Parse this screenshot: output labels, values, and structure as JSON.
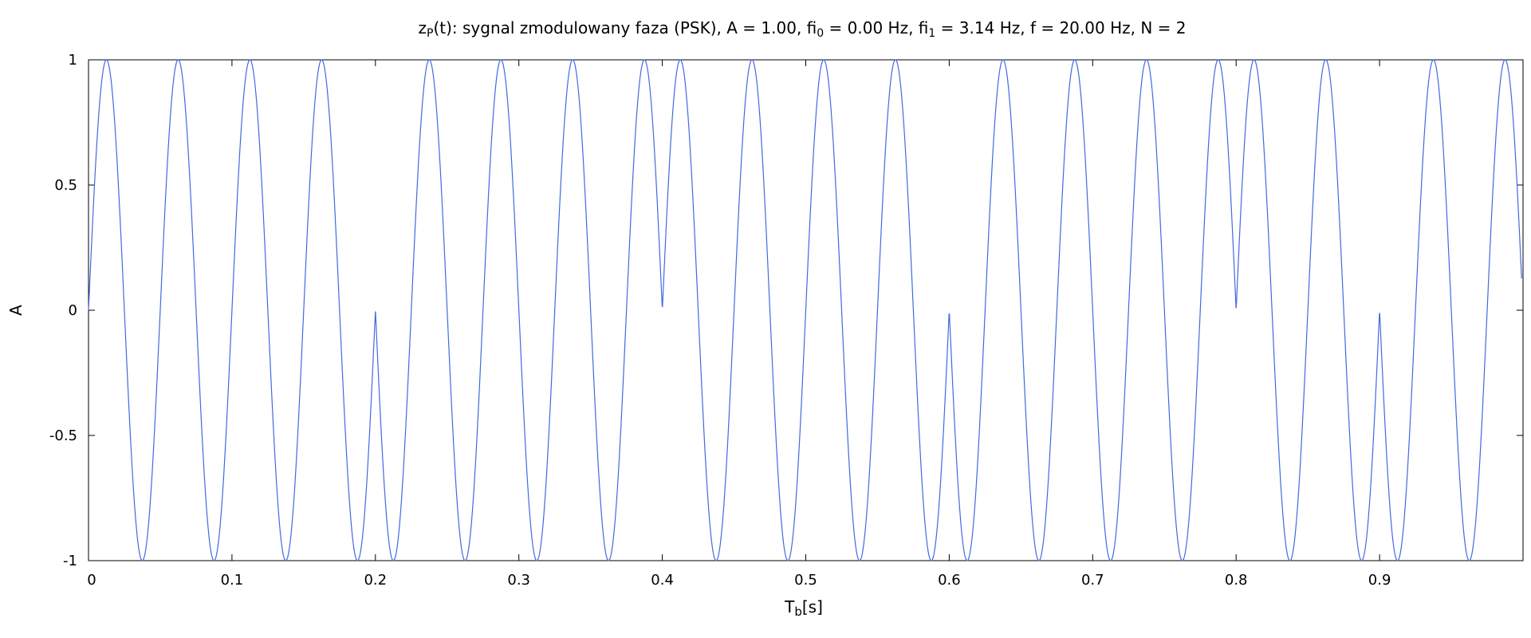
{
  "chart_data": {
    "type": "line",
    "title": {
      "prefix": "z",
      "prefix_sub": "P",
      "part1": "(t): sygnal zmodulowany faza (PSK), A = 1.00, fi",
      "sub0": "0",
      "part2": " = 0.00 Hz, fi",
      "sub1": "1",
      "part3": " = 3.14 Hz, f = 20.00 Hz, N = 2"
    },
    "xlabel": {
      "main": "T",
      "sub": "b",
      "rest": "[s]"
    },
    "ylabel": "A",
    "xlim": [
      0,
      1
    ],
    "ylim": [
      -1,
      1
    ],
    "xticks": [
      0,
      0.1,
      0.2,
      0.3,
      0.4,
      0.5,
      0.6,
      0.7,
      0.8,
      0.9
    ],
    "xtick_labels": [
      "0",
      "0.1",
      "0.2",
      "0.3",
      "0.4",
      "0.5",
      "0.6",
      "0.7",
      "0.8",
      "0.9"
    ],
    "yticks": [
      -1,
      -0.5,
      0,
      0.5,
      1
    ],
    "ytick_labels": [
      "-1",
      "-0.5",
      "0",
      "0.5",
      "1"
    ],
    "grid": false,
    "series": [
      {
        "name": "z_P(t)",
        "color": "#4169e1",
        "function": "|A*sin(2*pi*f*t + phi)|-style PSK, phase per bit",
        "amplitude": 1.0,
        "frequency_hz": 20.0,
        "bit_duration_s": 0.1,
        "bits": [
          0,
          0,
          1,
          1,
          0,
          0,
          1,
          1,
          0,
          1
        ],
        "phase_for_bit": [
          0.0,
          3.14
        ],
        "x_end": 0.999
      }
    ]
  }
}
